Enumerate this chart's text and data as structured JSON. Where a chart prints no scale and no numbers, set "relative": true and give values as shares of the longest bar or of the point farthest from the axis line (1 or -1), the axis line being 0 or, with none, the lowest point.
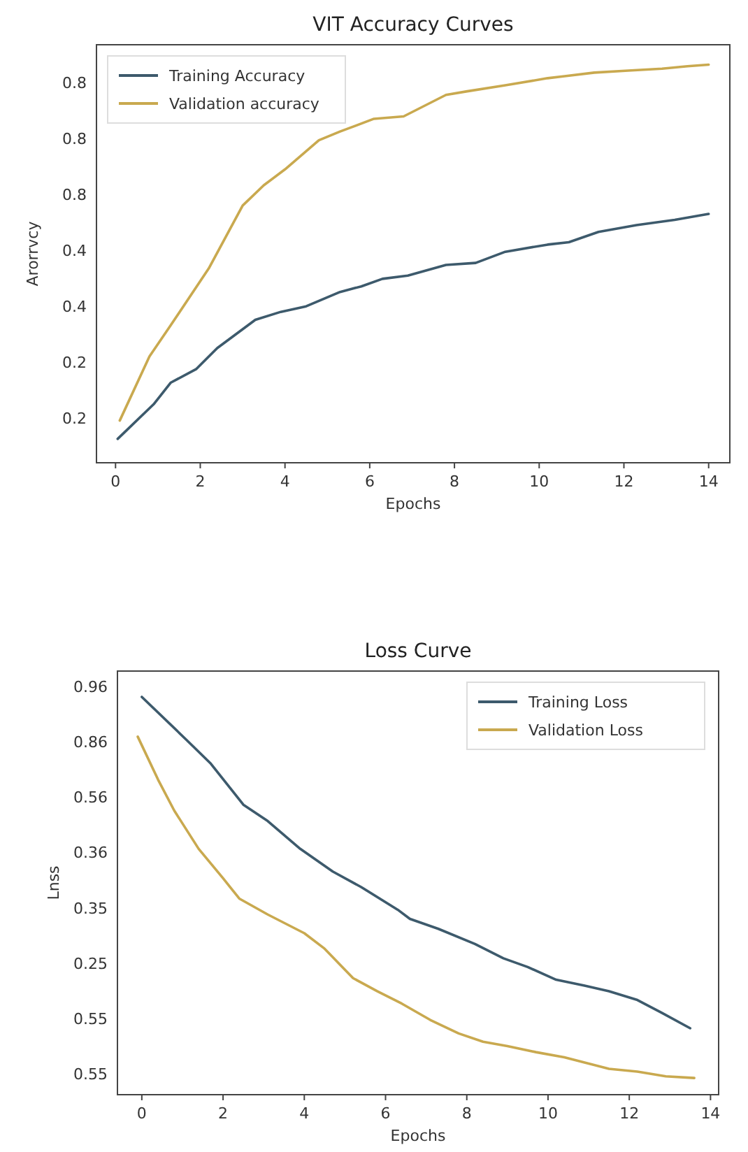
{
  "chart_data": [
    {
      "type": "line",
      "title": "VIT Accuracy Curves",
      "xlabel": "Epochs",
      "ylabel": "Arorrvcy",
      "relative": true,
      "xlim": [
        -0.45,
        14.5
      ],
      "xticks": [
        0,
        2,
        4,
        6,
        8,
        10,
        12,
        14
      ],
      "annotations": [
        "0.8",
        "0.8",
        "0.8",
        "0.4",
        "0.4",
        "0.2",
        "0.2"
      ],
      "grid": false,
      "legend": "top left",
      "line_style": "solid",
      "series": [
        {
          "name": "Training Accuracy",
          "color": "#3d5a6c",
          "x": [
            0.05,
            0.9,
            1.3,
            1.9,
            2.4,
            3.3,
            3.9,
            4.5,
            5.3,
            5.8,
            6.3,
            6.9,
            7.8,
            8.5,
            9.2,
            10.2,
            10.7,
            11.4,
            12.3,
            13.2,
            14
          ],
          "values": [
            0.06,
            0.147,
            0.201,
            0.235,
            0.288,
            0.359,
            0.379,
            0.393,
            0.429,
            0.443,
            0.462,
            0.47,
            0.497,
            0.502,
            0.53,
            0.548,
            0.554,
            0.58,
            0.597,
            0.61,
            0.625
          ]
        },
        {
          "name": "Validation accuracy",
          "color": "#c9a94f",
          "x": [
            0.1,
            0.8,
            1.3,
            2.2,
            3,
            3.5,
            4,
            4.8,
            5.3,
            6.1,
            6.8,
            7.8,
            8.3,
            9.2,
            10.2,
            10.6,
            11.3,
            12.1,
            12.9,
            13.5,
            14
          ],
          "values": [
            0.106,
            0.267,
            0.345,
            0.488,
            0.646,
            0.697,
            0.737,
            0.81,
            0.832,
            0.864,
            0.87,
            0.924,
            0.933,
            0.948,
            0.966,
            0.971,
            0.98,
            0.985,
            0.99,
            0.996,
            1
          ]
        }
      ]
    },
    {
      "type": "line",
      "title": "Loss Curve",
      "xlabel": "Epochs",
      "ylabel": "Lnss",
      "relative": true,
      "xlim": [
        -0.6,
        14.2
      ],
      "xticks": [
        0,
        2,
        4,
        6,
        8,
        10,
        12,
        14
      ],
      "annotations": [
        "0.96",
        "0.86",
        "0.56",
        "0.36",
        "0.35",
        "0.25",
        "0.55",
        "0.55"
      ],
      "grid": false,
      "legend": "top right",
      "line_style": "solid",
      "series": [
        {
          "name": "Training Loss",
          "color": "#3d5a6c",
          "x": [
            0,
            1.1,
            1.7,
            2.5,
            3.1,
            3.9,
            4.7,
            5.4,
            6.3,
            6.6,
            7.3,
            8.2,
            8.9,
            9.5,
            10.2,
            10.9,
            11.5,
            12.2,
            12.8,
            13.5
          ],
          "values": [
            1,
            0.892,
            0.832,
            0.729,
            0.688,
            0.618,
            0.561,
            0.522,
            0.465,
            0.442,
            0.417,
            0.379,
            0.343,
            0.321,
            0.289,
            0.274,
            0.26,
            0.238,
            0.206,
            0.167
          ]
        },
        {
          "name": "Validation Loss",
          "color": "#c9a94f",
          "x": [
            -0.1,
            0.4,
            0.8,
            1.4,
            2,
            2.4,
            3.1,
            4,
            4.5,
            5.2,
            5.8,
            6.4,
            7.1,
            7.8,
            8.4,
            9,
            9.7,
            10.4,
            10.9,
            11.5,
            12.2,
            12.9,
            13.6
          ],
          "values": [
            0.9,
            0.792,
            0.714,
            0.618,
            0.544,
            0.493,
            0.453,
            0.406,
            0.367,
            0.293,
            0.26,
            0.229,
            0.188,
            0.154,
            0.133,
            0.122,
            0.107,
            0.094,
            0.081,
            0.065,
            0.058,
            0.046,
            0.042
          ]
        }
      ]
    }
  ]
}
